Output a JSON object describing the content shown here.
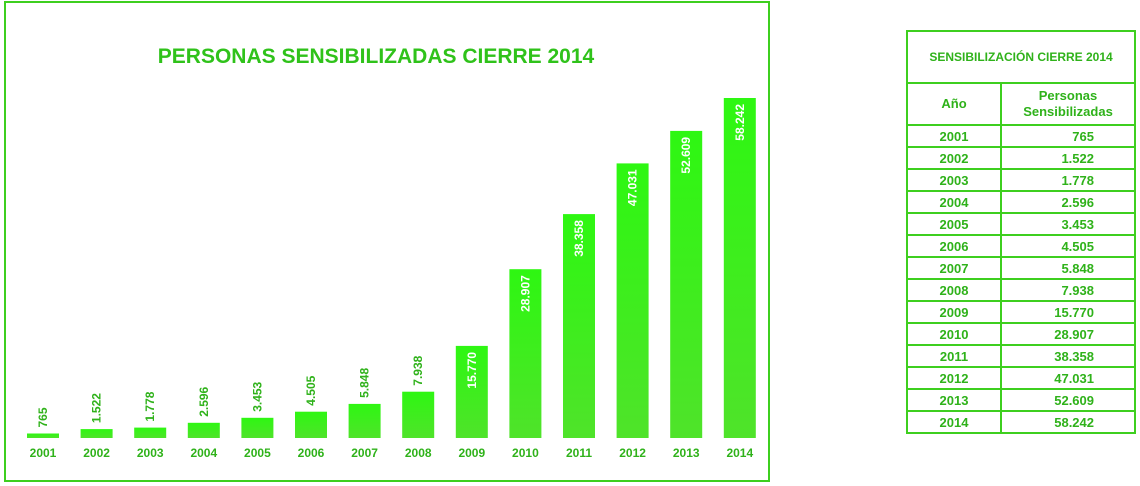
{
  "chart_data": {
    "type": "bar",
    "title": "PERSONAS SENSIBILIZADAS CIERRE 2014",
    "categories": [
      "2001",
      "2002",
      "2003",
      "2004",
      "2005",
      "2006",
      "2007",
      "2008",
      "2009",
      "2010",
      "2011",
      "2012",
      "2013",
      "2014"
    ],
    "values": [
      765,
      1522,
      1778,
      2596,
      3453,
      4505,
      5848,
      7938,
      15770,
      28907,
      38358,
      47031,
      52609,
      58242
    ],
    "value_labels": [
      "765",
      "1.522",
      "1.778",
      "2.596",
      "3.453",
      "4.505",
      "5.848",
      "7.938",
      "15.770",
      "28.907",
      "38.358",
      "47.031",
      "52.609",
      "58.242"
    ],
    "ylim": [
      0,
      60000
    ],
    "grid": false,
    "legend": "none"
  },
  "table": {
    "title": "SENSIBILIZACIÓN CIERRE 2014",
    "col_year": "Año",
    "col_people_line1": "Personas",
    "col_people_line2": "Sensibilizadas",
    "rows": [
      {
        "year": "2001",
        "value": "765"
      },
      {
        "year": "2002",
        "value": "1.522"
      },
      {
        "year": "2003",
        "value": "1.778"
      },
      {
        "year": "2004",
        "value": "2.596"
      },
      {
        "year": "2005",
        "value": "3.453"
      },
      {
        "year": "2006",
        "value": "4.505"
      },
      {
        "year": "2007",
        "value": "5.848"
      },
      {
        "year": "2008",
        "value": "7.938"
      },
      {
        "year": "2009",
        "value": "15.770"
      },
      {
        "year": "2010",
        "value": "28.907"
      },
      {
        "year": "2011",
        "value": "38.358"
      },
      {
        "year": "2012",
        "value": "47.031"
      },
      {
        "year": "2013",
        "value": "52.609"
      },
      {
        "year": "2014",
        "value": "58.242"
      }
    ]
  },
  "colors": {
    "bar_top": "#2ef712",
    "bar_bottom": "#4fe32a",
    "text_green": "#2fb21a",
    "border_green": "#3ecf1f"
  }
}
